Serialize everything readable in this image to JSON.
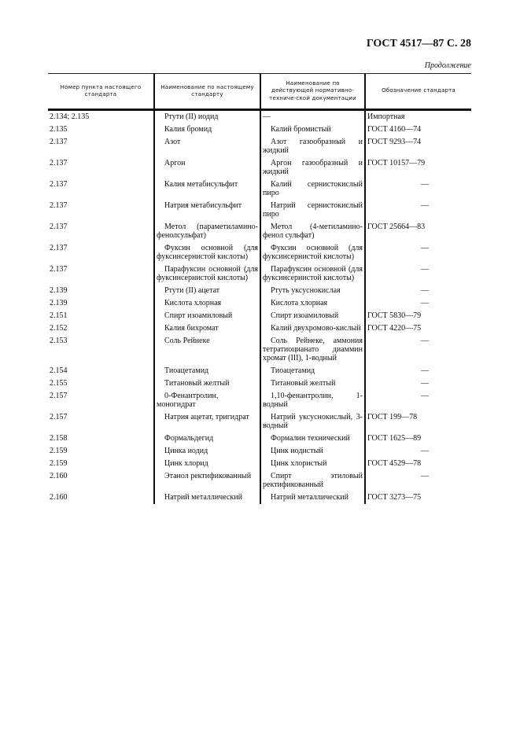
{
  "header": {
    "title": "ГОСТ 4517—87 С. 28",
    "continuation": "Продолжение"
  },
  "table": {
    "columns": [
      "Номер пункта настоящего стандарта",
      "Наименование по настоящему стандарту",
      "Наименование по действующей нормативно-техниче-ской документации",
      "Обозначение стандарта"
    ],
    "rows": [
      [
        "2.134; 2.135",
        "Ртути (II) иодид",
        "—",
        "Импортная"
      ],
      [
        "2.135",
        "Калия бромид",
        "Калий бромистый",
        "ГОСТ 4160—74"
      ],
      [
        "2.137",
        "Азот",
        "Азот газообразный и жидкий",
        "ГОСТ 9293—74"
      ],
      [
        "2.137",
        "Аргон",
        "Аргон газообразный и жидкий",
        "ГОСТ 10157—79"
      ],
      [
        "2.137",
        "Калия метабисульфит",
        "Калий сернистокислый пиро",
        "—"
      ],
      [
        "2.137",
        "Натрия метабисульфит",
        "Натрий сернистокислый пиро",
        "—"
      ],
      [
        "2.137",
        "Метол (параметиламино-фенолсульфат)",
        "Метол (4-метиламино-фенол сульфат)",
        "ГОСТ 25664—83"
      ],
      [
        "2.137",
        "Фуксин основной (для фуксинсернистой кислоты)",
        "Фуксин основной (для фуксинсернистой кислоты)",
        "—"
      ],
      [
        "2.137",
        "Парафуксин основной (для фуксинсернистой кислоты)",
        "Парафуксин основной (для фуксинсернистой кислоты)",
        "—"
      ],
      [
        "2.139",
        "Ртути (II) ацетат",
        "Ртуть уксуснокислая",
        "—"
      ],
      [
        "2.139",
        "Кислота хлорная",
        "Кислота хлорная",
        "—"
      ],
      [
        "2.151",
        "Спирт изоамиловый",
        "Спирт изоамиловый",
        "ГОСТ 5830—79"
      ],
      [
        "2.152",
        "Калия бихромат",
        "Калий двухромово-кислый",
        "ГОСТ 4220—75"
      ],
      [
        "2.153",
        "Соль Рейнеке",
        "Соль Рейнеке, аммония тетратиоцианато диаммин хромат (III), 1-водный",
        "—"
      ],
      [
        "2.154",
        "Тиоацетамид",
        "Тиоацетамид",
        "—"
      ],
      [
        "2.155",
        "Титановый желтый",
        "Титановый желтый",
        "—"
      ],
      [
        "2.157",
        "0-Фенантролин, моногидрат",
        "1,10-фенантролин, 1-водный",
        "—"
      ],
      [
        "2.157",
        "Натрия ацетат, тригидрат",
        "Натрий уксуснокислый, 3-водный",
        "ГОСТ 199—78"
      ],
      [
        "2.158",
        "Формальдегид",
        "Формалин технический",
        "ГОСТ 1625—89"
      ],
      [
        "2.159",
        "Цинка иодид",
        "Цинк иодистый",
        "—"
      ],
      [
        "2.159",
        "Цинк хлорид",
        "Цинк хлористый",
        "ГОСТ 4529—78"
      ],
      [
        "2.160",
        "Этанол ректификованный",
        "Спирт этиловый ректификованный",
        "—"
      ],
      [
        "2.160",
        "Натрий металлический",
        "Натрий металлический",
        "ГОСТ 3273—75"
      ]
    ]
  }
}
